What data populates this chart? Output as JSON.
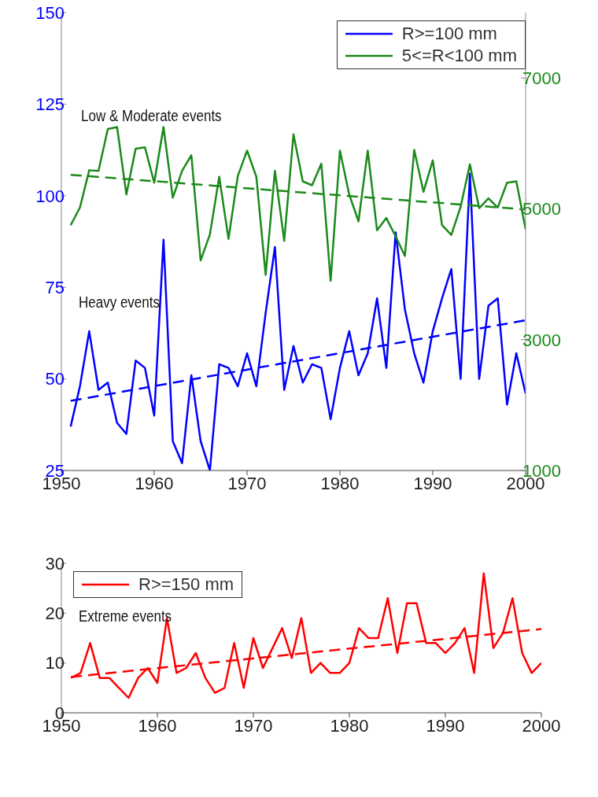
{
  "chart_data": [
    {
      "type": "line",
      "xlim": [
        1950,
        2000
      ],
      "xticks": [
        1950,
        1960,
        1970,
        1980,
        1990,
        2000
      ],
      "ylim": [
        25,
        150
      ],
      "yticks": [
        25,
        50,
        75,
        100,
        125,
        150
      ],
      "y2lim": [
        1000,
        8000
      ],
      "y2ticks": [
        1000,
        3000,
        5000,
        7000
      ],
      "legend": "top right",
      "line_style": "solid",
      "annotations": [
        "Low & Moderate events",
        "Heavy events"
      ],
      "series": [
        {
          "name": "R>=100 mm",
          "color": "#0000ff",
          "x": [
            1951,
            1952,
            1953,
            1954,
            1955,
            1956,
            1957,
            1958,
            1959,
            1960,
            1961,
            1962,
            1963,
            1964,
            1965,
            1966,
            1967,
            1968,
            1969,
            1970,
            1971,
            1972,
            1973,
            1974,
            1975,
            1976,
            1977,
            1978,
            1979,
            1980,
            1981,
            1982,
            1983,
            1984,
            1985,
            1986,
            1987,
            1988,
            1989,
            1990,
            1991,
            1992,
            1993,
            1994,
            1995,
            1996,
            1997,
            1998,
            1999,
            2000
          ],
          "values": [
            37,
            48,
            63,
            47,
            49,
            38,
            35,
            55,
            53,
            40,
            88,
            33,
            27,
            51,
            33,
            25,
            54,
            53,
            48,
            57,
            48,
            68,
            86,
            47,
            59,
            49,
            54,
            53,
            39,
            53,
            63,
            51,
            57,
            72,
            53,
            90,
            69,
            57,
            49,
            63,
            72,
            80,
            50,
            106,
            50,
            70,
            72,
            43,
            57,
            46
          ]
        },
        {
          "name": "5<=R<100 mm",
          "color": "#1a8a1a",
          "axis": "y2",
          "x": [
            1951,
            1952,
            1953,
            1954,
            1955,
            1956,
            1957,
            1958,
            1959,
            1960,
            1961,
            1962,
            1963,
            1964,
            1965,
            1966,
            1967,
            1968,
            1969,
            1970,
            1971,
            1972,
            1973,
            1974,
            1975,
            1976,
            1977,
            1978,
            1979,
            1980,
            1981,
            1982,
            1983,
            1984,
            1985,
            1986,
            1987,
            1988,
            1989,
            1990,
            1991,
            1992,
            1993,
            1994,
            1995,
            1996,
            1997,
            1998,
            1999,
            2000
          ],
          "values": [
            4750,
            5020,
            5590,
            5580,
            6220,
            6250,
            5220,
            5920,
            5940,
            5400,
            6250,
            5170,
            5580,
            5820,
            4210,
            4610,
            5490,
            4540,
            5500,
            5890,
            5490,
            3990,
            5580,
            4510,
            6140,
            5420,
            5360,
            5690,
            3900,
            5890,
            5220,
            4810,
            5890,
            4670,
            4860,
            4580,
            4280,
            5900,
            5260,
            5740,
            4750,
            4600,
            5030,
            5680,
            5010,
            5160,
            5020,
            5400,
            5420,
            4690
          ]
        },
        {
          "color": "#0000ff",
          "line_style": "dashed",
          "x": [
            1951,
            2000
          ],
          "values": [
            44,
            66
          ]
        },
        {
          "color": "#1a8a1a",
          "line_style": "dashed",
          "axis": "y2",
          "x": [
            1951,
            2000
          ],
          "values": [
            5520,
            4990
          ]
        }
      ]
    },
    {
      "type": "line",
      "xlim": [
        1950,
        2000
      ],
      "xticks": [
        1950,
        1960,
        1970,
        1980,
        1990,
        2000
      ],
      "ylim": [
        0,
        30
      ],
      "yticks": [
        0,
        10,
        20,
        30
      ],
      "legend": "top left",
      "line_style": "solid",
      "annotations": [
        "Extreme events"
      ],
      "series": [
        {
          "name": "R>=150 mm",
          "color": "#ff0000",
          "x": [
            1951,
            1952,
            1953,
            1954,
            1955,
            1956,
            1957,
            1958,
            1959,
            1960,
            1961,
            1962,
            1963,
            1964,
            1965,
            1966,
            1967,
            1968,
            1969,
            1970,
            1971,
            1972,
            1973,
            1974,
            1975,
            1976,
            1977,
            1978,
            1979,
            1980,
            1981,
            1982,
            1983,
            1984,
            1985,
            1986,
            1987,
            1988,
            1989,
            1990,
            1991,
            1992,
            1993,
            1994,
            1995,
            1996,
            1997,
            1998,
            1999,
            2000
          ],
          "values": [
            7,
            8,
            14,
            7,
            7,
            5,
            3,
            7,
            9,
            6,
            19,
            8,
            9,
            12,
            7,
            4,
            5,
            14,
            5,
            15,
            9,
            13,
            17,
            11,
            19,
            8,
            10,
            8,
            8,
            10,
            17,
            15,
            15,
            23,
            12,
            22,
            22,
            14,
            14,
            12,
            14,
            17,
            8,
            28,
            13,
            16,
            23,
            12,
            8,
            10
          ]
        },
        {
          "color": "#ff0000",
          "line_style": "dashed",
          "x": [
            1951,
            2000
          ],
          "values": [
            7.2,
            16.8
          ]
        }
      ]
    }
  ]
}
